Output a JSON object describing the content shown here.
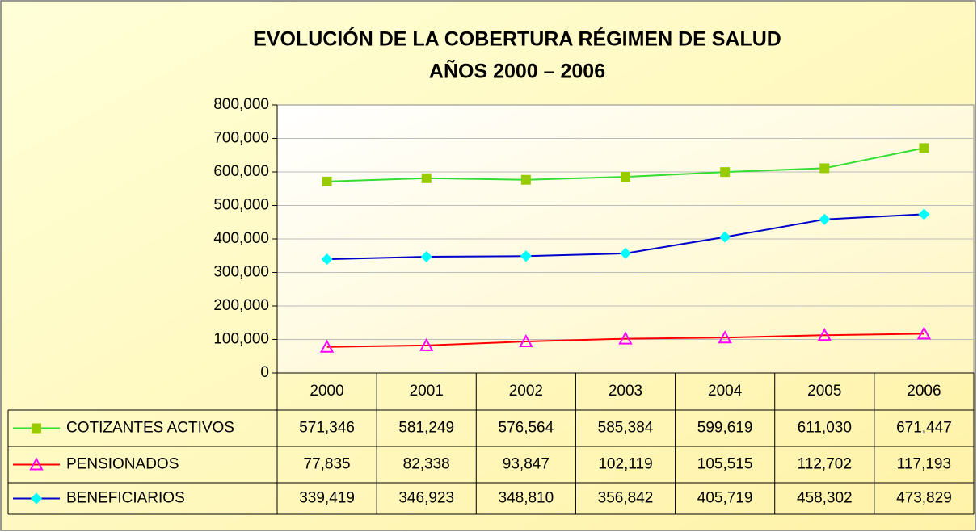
{
  "chart_data": {
    "type": "line",
    "title": [
      "EVOLUCIÓN DE LA COBERTURA RÉGIMEN DE SALUD",
      "AÑOS 2000 – 2006"
    ],
    "categories": [
      "2000",
      "2001",
      "2002",
      "2003",
      "2004",
      "2005",
      "2006"
    ],
    "series": [
      {
        "name": "COTIZANTES ACTIVOS",
        "color": "#33dd33",
        "marker_color": "#99cc00",
        "marker": "square",
        "values": [
          571346,
          581249,
          576564,
          585384,
          599619,
          611030,
          671447
        ],
        "value_labels": [
          "571,346",
          "581,249",
          "576,564",
          "585,384",
          "599,619",
          "611,030",
          "671,447"
        ]
      },
      {
        "name": "PENSIONADOS",
        "color": "#ff0000",
        "marker_color": "#ff00ff",
        "marker": "triangle",
        "values": [
          77835,
          82338,
          93847,
          102119,
          105515,
          112702,
          117193
        ],
        "value_labels": [
          "77,835",
          "82,338",
          "93,847",
          "102,119",
          "105,515",
          "112,702",
          "117,193"
        ]
      },
      {
        "name": "BENEFICIARIOS",
        "color": "#0000cc",
        "marker_color": "#00ffff",
        "marker": "diamond",
        "values": [
          339419,
          346923,
          348810,
          356842,
          405719,
          458302,
          473829
        ],
        "value_labels": [
          "339,419",
          "346,923",
          "348,810",
          "356,842",
          "405,719",
          "458,302",
          "473,829"
        ]
      }
    ],
    "ylim": [
      0,
      800000
    ],
    "yticks": [
      0,
      {
        "value": 100000,
        "label": "100,000"
      },
      {
        "value": 200000,
        "label": "200,000"
      },
      {
        "value": 300000,
        "label": "300,000"
      },
      {
        "value": 400000,
        "label": "400,000"
      },
      {
        "value": 500000,
        "label": "500,000"
      },
      {
        "value": 600000,
        "label": "600,000"
      },
      {
        "value": 700000,
        "label": "700,000"
      },
      {
        "value": 800000,
        "label": "800,000"
      }
    ],
    "grid": true
  }
}
